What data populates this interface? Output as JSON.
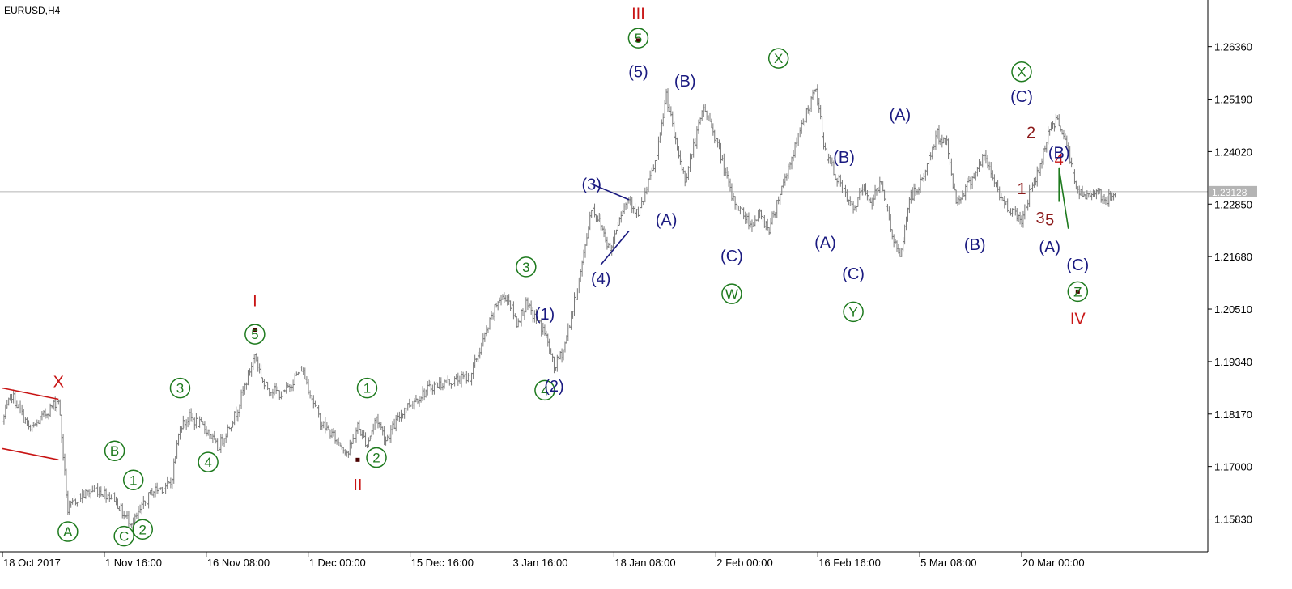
{
  "chart_data": {
    "type": "ohlc",
    "symbol_label": "EURUSD,H4",
    "y_ticks": [
      "1.26360",
      "1.25190",
      "1.24020",
      "1.22850",
      "1.21680",
      "1.20510",
      "1.19340",
      "1.18170",
      "1.17000",
      "1.15830"
    ],
    "ylim": [
      1.151,
      1.274
    ],
    "current_price": "1.23128",
    "x_ticks": [
      "18 Oct 2017",
      "1 Nov 16:00",
      "16 Nov 08:00",
      "1 Dec 00:00",
      "15 Dec 16:00",
      "3 Jan 16:00",
      "18 Jan 08:00",
      "2 Feb 00:00",
      "16 Feb 16:00",
      "5 Mar 08:00",
      "20 Mar 00:00"
    ],
    "grid": false,
    "price_path": [
      [
        "18 Oct 2017",
        1.18
      ],
      [
        "19 Oct 2017",
        1.186
      ],
      [
        "23 Oct 2017",
        1.178
      ],
      [
        "26 Oct 2017",
        1.185
      ],
      [
        "27 Oct 2017",
        1.16
      ],
      [
        "30 Oct 2017",
        1.163
      ],
      [
        "1 Nov 2017",
        1.165
      ],
      [
        "3 Nov 2017",
        1.163
      ],
      [
        "6 Nov 2017",
        1.159
      ],
      [
        "7 Nov 2017",
        1.1575
      ],
      [
        "9 Nov 2017",
        1.1645
      ],
      [
        "13 Nov 2017",
        1.166
      ],
      [
        "14 Nov 2017",
        1.179
      ],
      [
        "15 Nov 2017",
        1.181
      ],
      [
        "17 Nov 2017",
        1.178
      ],
      [
        "20 Nov 2017",
        1.174
      ],
      [
        "22 Nov 2017",
        1.182
      ],
      [
        "24 Nov 2017",
        1.195
      ],
      [
        "27 Nov 2017",
        1.188
      ],
      [
        "29 Nov 2017",
        1.186
      ],
      [
        "1 Dec 2017",
        1.192
      ],
      [
        "5 Dec 2017",
        1.18
      ],
      [
        "8 Dec 2017",
        1.173
      ],
      [
        "11 Dec 2017",
        1.179
      ],
      [
        "12 Dec 2017",
        1.175
      ],
      [
        "13 Dec 2017",
        1.181
      ],
      [
        "14 Dec 2017",
        1.176
      ],
      [
        "18 Dec 2017",
        1.183
      ],
      [
        "21 Dec 2017",
        1.188
      ],
      [
        "27 Dec 2017",
        1.19
      ],
      [
        "1 Jan 2018",
        1.207
      ],
      [
        "2 Jan 2018",
        1.208
      ],
      [
        "3 Jan 2018",
        1.202
      ],
      [
        "4 Jan 2018",
        1.206
      ],
      [
        "8 Jan 2018",
        1.2
      ],
      [
        "9 Jan 2018",
        1.192
      ],
      [
        "10 Jan 2018",
        1.196
      ],
      [
        "11 Jan 2018",
        1.205
      ],
      [
        "12 Jan 2018",
        1.215
      ],
      [
        "15 Jan 2018",
        1.228
      ],
      [
        "16 Jan 2018",
        1.224
      ],
      [
        "17 Jan 2018",
        1.218
      ],
      [
        "18 Jan 2018",
        1.226
      ],
      [
        "19 Jan 2018",
        1.23
      ],
      [
        "22 Jan 2018",
        1.226
      ],
      [
        "24 Jan 2018",
        1.239
      ],
      [
        "25 Jan 2018",
        1.253
      ],
      [
        "26 Jan 2018",
        1.242
      ],
      [
        "29 Jan 2018",
        1.234
      ],
      [
        "31 Jan 2018",
        1.25
      ],
      [
        "1 Feb 2018",
        1.245
      ],
      [
        "2 Feb 2018",
        1.238
      ],
      [
        "5 Feb 2018",
        1.23
      ],
      [
        "7 Feb 2018",
        1.224
      ],
      [
        "8 Feb 2018",
        1.226
      ],
      [
        "9 Feb 2018",
        1.223
      ],
      [
        "12 Feb 2018",
        1.23
      ],
      [
        "15 Feb 2018",
        1.249
      ],
      [
        "16 Feb 2018",
        1.254
      ],
      [
        "19 Feb 2018",
        1.24
      ],
      [
        "21 Feb 2018",
        1.231
      ],
      [
        "22 Feb 2018",
        1.227
      ],
      [
        "23 Feb 2018",
        1.232
      ],
      [
        "26 Feb 2018",
        1.229
      ],
      [
        "27 Feb 2018",
        1.234
      ],
      [
        "28 Feb 2018",
        1.223
      ],
      [
        "1 Mar 2018",
        1.216
      ],
      [
        "2 Mar 2018",
        1.23
      ],
      [
        "5 Mar 2018",
        1.232
      ],
      [
        "7 Mar 2018",
        1.244
      ],
      [
        "8 Mar 2018",
        1.242
      ],
      [
        "9 Mar 2018",
        1.229
      ],
      [
        "12 Mar 2018",
        1.232
      ],
      [
        "14 Mar 2018",
        1.239
      ],
      [
        "16 Mar 2018",
        1.229
      ],
      [
        "19 Mar 2018",
        1.227
      ],
      [
        "20 Mar 2018",
        1.225
      ],
      [
        "21 Mar 2018",
        1.232
      ],
      [
        "22 Mar 2018",
        1.237
      ],
      [
        "23 Mar 2018",
        1.246
      ],
      [
        "26 Mar 2018",
        1.247
      ],
      [
        "27 Mar 2018",
        1.24
      ],
      [
        "28 Mar 2018",
        1.231
      ],
      [
        "29 Mar 2018",
        1.23
      ],
      [
        "30 Mar 2018",
        1.232
      ],
      [
        "2 Apr 2018",
        1.229
      ],
      [
        "3 Apr 2018",
        1.231
      ]
    ],
    "wave_labels": [
      {
        "text": "X",
        "style": "plain",
        "color": "#c81414",
        "date": "26 Oct 2017",
        "price": 1.189
      },
      {
        "text": "A",
        "style": "circle",
        "color": "#1e7a1e",
        "date": "27 Oct 2017",
        "price": 1.1555
      },
      {
        "text": "B",
        "style": "circle",
        "color": "#1e7a1e",
        "date": "3 Nov 2017",
        "price": 1.1735
      },
      {
        "text": "1",
        "style": "circle",
        "color": "#1e7a1e",
        "date": "7 Nov 2017",
        "price": 1.167
      },
      {
        "text": "C",
        "style": "circle",
        "color": "#1e7a1e",
        "date": "6 Nov 2017",
        "price": 1.1545
      },
      {
        "text": "2",
        "style": "circle",
        "color": "#1e7a1e",
        "date": "8 Nov 2017",
        "price": 1.156
      },
      {
        "text": "3",
        "style": "circle",
        "color": "#1e7a1e",
        "date": "14 Nov 2017",
        "price": 1.1875
      },
      {
        "text": "4",
        "style": "circle",
        "color": "#1e7a1e",
        "date": "17 Nov 2017",
        "price": 1.171
      },
      {
        "text": "I",
        "style": "plain",
        "color": "#c81414",
        "date": "24 Nov 2017",
        "price": 1.207
      },
      {
        "text": "5",
        "style": "circle",
        "color": "#1e7a1e",
        "date": "24 Nov 2017",
        "price": 1.1995
      },
      {
        "text": "II",
        "style": "plain",
        "color": "#c81414",
        "date": "11 Dec 2017",
        "price": 1.166
      },
      {
        "text": "1",
        "style": "circle",
        "color": "#1e7a1e",
        "date": "12 Dec 2017",
        "price": 1.1875
      },
      {
        "text": "2",
        "style": "circle",
        "color": "#1e7a1e",
        "date": "13 Dec 2017",
        "price": 1.172
      },
      {
        "text": "3",
        "style": "circle",
        "color": "#1e7a1e",
        "date": "4 Jan 2018",
        "price": 1.2145
      },
      {
        "text": "4",
        "style": "circle",
        "color": "#1e7a1e",
        "date": "8 Jan 2018",
        "price": 1.187
      },
      {
        "text": "(1)",
        "style": "plain",
        "color": "#1a1a80",
        "date": "8 Jan 2018",
        "price": 1.204
      },
      {
        "text": "(2)",
        "style": "plain",
        "color": "#1a1a80",
        "date": "9 Jan 2018",
        "price": 1.188
      },
      {
        "text": "(3)",
        "style": "plain",
        "color": "#1a1a80",
        "date": "15 Jan 2018",
        "price": 1.233
      },
      {
        "text": "(4)",
        "style": "plain",
        "color": "#1a1a80",
        "date": "16 Jan 2018",
        "price": 1.212
      },
      {
        "text": "III",
        "style": "plain",
        "color": "#c81414",
        "date": "22 Jan 2018",
        "price": 1.271
      },
      {
        "text": "5",
        "style": "circle",
        "color": "#1e7a1e",
        "date": "22 Jan 2018",
        "price": 1.2655
      },
      {
        "text": "(5)",
        "style": "plain",
        "color": "#1a1a80",
        "date": "22 Jan 2018",
        "price": 1.258
      },
      {
        "text": "(A)",
        "style": "plain",
        "color": "#1a1a80",
        "date": "25 Jan 2018",
        "price": 1.225
      },
      {
        "text": "(B)",
        "style": "plain",
        "color": "#1a1a80",
        "date": "29 Jan 2018",
        "price": 1.256
      },
      {
        "text": "(C)",
        "style": "plain",
        "color": "#1a1a80",
        "date": "5 Feb 2018",
        "price": 1.217
      },
      {
        "text": "W",
        "style": "circle",
        "color": "#1e7a1e",
        "date": "5 Feb 2018",
        "price": 1.2085
      },
      {
        "text": "X",
        "style": "circle",
        "color": "#1e7a1e",
        "date": "12 Feb 2018",
        "price": 1.261
      },
      {
        "text": "(A)",
        "style": "plain",
        "color": "#1a1a80",
        "date": "19 Feb 2018",
        "price": 1.22
      },
      {
        "text": "(B)",
        "style": "plain",
        "color": "#1a1a80",
        "date": "21 Feb 2018",
        "price": 1.239
      },
      {
        "text": "(C)",
        "style": "plain",
        "color": "#1a1a80",
        "date": "22 Feb 2018",
        "price": 1.213
      },
      {
        "text": "Y",
        "style": "circle",
        "color": "#1e7a1e",
        "date": "22 Feb 2018",
        "price": 1.2045
      },
      {
        "text": "(A)",
        "style": "plain",
        "color": "#1a1a80",
        "date": "1 Mar 2018",
        "price": 1.2485
      },
      {
        "text": "(B)",
        "style": "plain",
        "color": "#1a1a80",
        "date": "13 Mar 2018",
        "price": 1.2195
      },
      {
        "text": "X",
        "style": "circle",
        "color": "#1e7a1e",
        "date": "20 Mar 2018",
        "price": 1.258
      },
      {
        "text": "(C)",
        "style": "plain",
        "color": "#1a1a80",
        "date": "20 Mar 2018",
        "price": 1.2525
      },
      {
        "text": "2",
        "style": "plain",
        "color": "#8c1a1a",
        "date": "21 Mar 2018",
        "price": 1.2445
      },
      {
        "text": "1",
        "style": "plain",
        "color": "#8c1a1a",
        "date": "20 Mar 2018",
        "price": 1.232
      },
      {
        "text": "4",
        "style": "plain",
        "color": "#c81414",
        "date": "24 Mar 2018",
        "price": 1.2385
      },
      {
        "text": "(B)",
        "style": "plain",
        "color": "#1a1a80",
        "date": "25 Mar 2018",
        "price": 1.24
      },
      {
        "text": "3",
        "style": "plain",
        "color": "#8c1a1a",
        "date": "22 Mar 2018",
        "price": 1.2255
      },
      {
        "text": "5",
        "style": "plain",
        "color": "#8c1a1a",
        "date": "23 Mar 2018",
        "price": 1.225
      },
      {
        "text": "(A)",
        "style": "plain",
        "color": "#1a1a80",
        "date": "23 Mar 2018",
        "price": 1.219
      },
      {
        "text": "(C)",
        "style": "plain",
        "color": "#1a1a80",
        "date": "28 Mar 2018",
        "price": 1.215
      },
      {
        "text": "Z",
        "style": "circle",
        "color": "#1e7a1e",
        "date": "28 Mar 2018",
        "price": 1.209
      },
      {
        "text": "IV",
        "style": "plain",
        "color": "#c81414",
        "date": "28 Mar 2018",
        "price": 1.203
      }
    ],
    "trendlines": [
      {
        "color": "#c81414",
        "from": [
          "18 Oct 2017",
          1.1875
        ],
        "to": [
          "26 Oct 2017",
          1.185
        ]
      },
      {
        "color": "#c81414",
        "from": [
          "18 Oct 2017",
          1.174
        ],
        "to": [
          "26 Oct 2017",
          1.1715
        ]
      },
      {
        "color": "#1a1a80",
        "from": [
          "15 Jan 2018",
          1.233
        ],
        "to": [
          "19 Jan 2018",
          1.2295
        ]
      },
      {
        "color": "#1a1a80",
        "from": [
          "16 Jan 2018",
          1.215
        ],
        "to": [
          "19 Jan 2018",
          1.2225
        ]
      },
      {
        "color": "#1e7a1e",
        "from": [
          "24 Mar 2018",
          1.229
        ],
        "to": [
          "25 Mar 2018",
          1.2365
        ]
      },
      {
        "color": "#1e7a1e",
        "from": [
          "25 Mar 2018",
          1.2365
        ],
        "to": [
          "27 Mar 2018",
          1.223
        ]
      }
    ],
    "pivot_markers": [
      {
        "date": "24 Nov 2017",
        "price": 1.2005
      },
      {
        "date": "11 Dec 2017",
        "price": 1.1715
      },
      {
        "date": "22 Jan 2018",
        "price": 1.265
      },
      {
        "date": "28 Mar 2018",
        "price": 1.209
      }
    ]
  }
}
